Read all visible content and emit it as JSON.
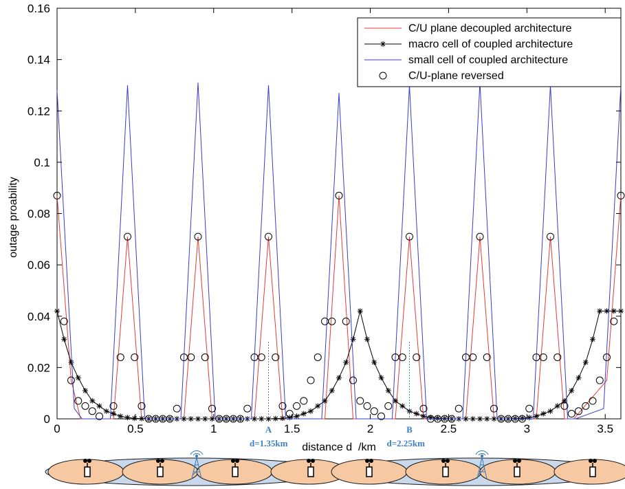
{
  "chart_data": {
    "type": "line",
    "title": "",
    "xlabel": "distance d  /km",
    "ylabel": "outage proability",
    "xlim": [
      0,
      3.6
    ],
    "ylim": [
      0,
      0.16
    ],
    "xticks": [
      0,
      0.5,
      1,
      1.5,
      2,
      2.5,
      3,
      3.5
    ],
    "xtick_labels": [
      "0",
      "0.5",
      "1",
      "1.5",
      "2",
      "2.5",
      "3",
      "3.5"
    ],
    "yticks": [
      0,
      0.02,
      0.04,
      0.06,
      0.08,
      0.1,
      0.12,
      0.14,
      0.16
    ],
    "ytick_labels": [
      "0",
      "0.02",
      "0.04",
      "0.06",
      "0.08",
      "0.1",
      "0.12",
      "0.14",
      "0.16"
    ],
    "grid": false,
    "legend_position": "top-right",
    "series": [
      {
        "name": "C/U plane decoupled architecture",
        "color": "#e8393a",
        "marker": "none",
        "x": [
          0,
          0.09,
          0.15,
          0.36,
          0.45,
          0.54,
          0.6,
          0.81,
          0.9,
          0.99,
          1.05,
          1.26,
          1.35,
          1.44,
          1.5,
          1.71,
          1.8,
          1.89,
          1.95,
          2.16,
          2.25,
          2.34,
          2.4,
          2.61,
          2.7,
          2.79,
          2.85,
          3.06,
          3.15,
          3.24,
          3.3,
          3.51,
          3.6
        ],
        "y": [
          0.087,
          0.015,
          0,
          0,
          0.071,
          0,
          0,
          0,
          0.071,
          0,
          0,
          0,
          0.071,
          0,
          0,
          0,
          0.087,
          0,
          0,
          0,
          0.071,
          0,
          0,
          0,
          0.071,
          0,
          0,
          0,
          0.071,
          0,
          0,
          0.015,
          0.087
        ]
      },
      {
        "name": "macro cell of coupled architecture",
        "color": "#000000",
        "marker": "star",
        "x": [
          0,
          0.045,
          0.09,
          0.135,
          0.18,
          0.225,
          0.27,
          0.315,
          0.36,
          0.405,
          0.45,
          0.495,
          0.54,
          0.585,
          0.63,
          0.675,
          0.72,
          0.765,
          0.81,
          0.855,
          0.9,
          0.945,
          0.99,
          1.035,
          1.08,
          1.125,
          1.17,
          1.215,
          1.26,
          1.305,
          1.35,
          1.395,
          1.44,
          1.485,
          1.53,
          1.575,
          1.62,
          1.665,
          1.71,
          1.755,
          1.8,
          1.845,
          1.89,
          1.935,
          1.98,
          2.025,
          2.07,
          2.115,
          2.16,
          2.205,
          2.25,
          2.295,
          2.34,
          2.385,
          2.43,
          2.475,
          2.52,
          2.565,
          2.61,
          2.655,
          2.7,
          2.745,
          2.79,
          2.835,
          2.88,
          2.925,
          2.97,
          3.015,
          3.06,
          3.105,
          3.15,
          3.195,
          3.24,
          3.285,
          3.33,
          3.375,
          3.42,
          3.465,
          3.51,
          3.555,
          3.6
        ],
        "y": [
          0.042,
          0.031,
          0.022,
          0.016,
          0.011,
          0.007,
          0.005,
          0.003,
          0.002,
          0.001,
          0.0005,
          0.0002,
          0.0001,
          0,
          0,
          0,
          0,
          0,
          0,
          0,
          0,
          0,
          0,
          0,
          0,
          0,
          0,
          0,
          0,
          0,
          0,
          0.0001,
          0.0002,
          0.0005,
          0.001,
          0.002,
          0.003,
          0.005,
          0.007,
          0.011,
          0.016,
          0.022,
          0.031,
          0.042,
          0.031,
          0.022,
          0.016,
          0.011,
          0.007,
          0.005,
          0.003,
          0.002,
          0.001,
          0.0005,
          0.0002,
          0.0001,
          0,
          0,
          0,
          0,
          0,
          0,
          0,
          0,
          0,
          0.0001,
          0.0002,
          0.0005,
          0.001,
          0.002,
          0.003,
          0.005,
          0.007,
          0.011,
          0.016,
          0.022,
          0.031,
          0.042,
          0.042,
          0.042,
          0.042
        ]
      },
      {
        "name": "small cell of coupled architecture",
        "color": "#3a3acf",
        "marker": "none",
        "x": [
          0,
          0.11,
          0.16,
          0.34,
          0.45,
          0.56,
          0.61,
          0.79,
          0.9,
          1.01,
          1.06,
          1.24,
          1.35,
          1.46,
          1.51,
          1.69,
          1.8,
          1.91,
          1.96,
          2.14,
          2.25,
          2.36,
          2.41,
          2.59,
          2.7,
          2.81,
          2.86,
          3.04,
          3.15,
          3.26,
          3.31,
          3.49,
          3.6
        ],
        "y": [
          0.128,
          0.004,
          0,
          0,
          0.13,
          0,
          0,
          0,
          0.131,
          0,
          0,
          0,
          0.13,
          0,
          0,
          0,
          0.127,
          0,
          0,
          0,
          0.13,
          0,
          0,
          0,
          0.131,
          0,
          0,
          0,
          0.13,
          0,
          0,
          0.004,
          0.13
        ]
      },
      {
        "name": "C/U-plane reversed",
        "color": "#000000",
        "marker": "circle",
        "x": [
          0,
          0.045,
          0.09,
          0.135,
          0.18,
          0.225,
          0.27,
          0.36,
          0.405,
          0.45,
          0.495,
          0.54,
          0.585,
          0.63,
          0.675,
          0.72,
          0.765,
          0.81,
          0.855,
          0.9,
          0.945,
          0.99,
          1.035,
          1.08,
          1.125,
          1.17,
          1.215,
          1.26,
          1.305,
          1.35,
          1.395,
          1.44,
          1.485,
          1.53,
          1.575,
          1.62,
          1.665,
          1.71,
          1.755,
          1.8,
          1.845,
          1.89,
          1.935,
          1.98,
          2.025,
          2.07,
          2.115,
          2.16,
          2.205,
          2.25,
          2.295,
          2.34,
          2.385,
          2.43,
          2.475,
          2.52,
          2.565,
          2.61,
          2.655,
          2.7,
          2.745,
          2.79,
          2.835,
          2.88,
          2.925,
          2.97,
          3.015,
          3.06,
          3.105,
          3.15,
          3.195,
          3.24,
          3.285,
          3.33,
          3.375,
          3.42,
          3.465,
          3.51,
          3.555,
          3.6
        ],
        "y": [
          0.087,
          0.038,
          0.015,
          0.007,
          0.005,
          0.003,
          0.001,
          0.005,
          0.024,
          0.071,
          0.024,
          0.005,
          0,
          0,
          0,
          0,
          0.004,
          0.024,
          0.024,
          0.071,
          0.024,
          0.004,
          0,
          0,
          0,
          0,
          0.004,
          0.024,
          0.024,
          0.071,
          0.024,
          0.005,
          0.002,
          0.005,
          0.007,
          0.015,
          0.024,
          0.038,
          0.038,
          0.087,
          0.038,
          0.015,
          0.007,
          0.005,
          0.003,
          0.001,
          0.005,
          0.024,
          0.024,
          0.071,
          0.024,
          0.004,
          0,
          0,
          0,
          0,
          0.004,
          0.024,
          0.024,
          0.071,
          0.024,
          0.004,
          0,
          0,
          0,
          0,
          0.004,
          0.024,
          0.024,
          0.071,
          0.024,
          0.005,
          0.002,
          0.003,
          0.005,
          0.007,
          0.015,
          0.024,
          0.038,
          0.087
        ]
      }
    ],
    "annotations": [
      {
        "marker": "A",
        "label": "d=1.35km",
        "x": 1.35,
        "color": "#3d7fc4"
      },
      {
        "marker": "B",
        "label": "d=2.25km",
        "x": 2.25,
        "color": "#3d7fc4"
      }
    ],
    "cell_strip": {
      "macro_cell_fill": "#f6c9a3",
      "outer_cell_fill": "#c9d8ea",
      "tower_color": "#2c79bd",
      "small_cell_icon": "small-base-station-icon",
      "macro_icon": "macro-tower-icon",
      "small_cell_x": [
        0.2,
        0.7,
        1.15,
        1.85,
        2.35,
        2.85,
        3.25,
        3.7
      ],
      "macro_tower_x": [
        0.95,
        2.45
      ]
    }
  }
}
